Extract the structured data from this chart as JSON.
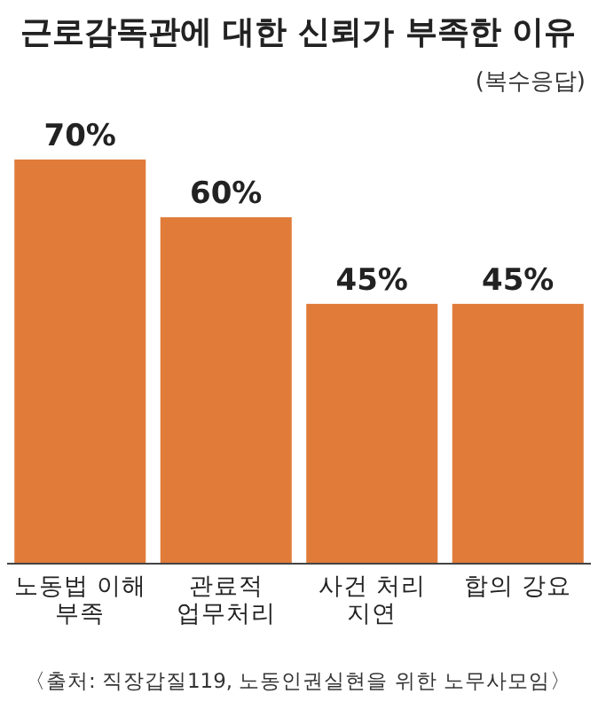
{
  "chart_data": {
    "type": "bar",
    "title": "근로감독관에 대한 신뢰가 부족한 이유",
    "subtitle": "(복수응답)",
    "categories": [
      "노동법 이해\n부족",
      "관료적\n업무처리",
      "사건 처리\n지연",
      "합의 강요"
    ],
    "values": [
      70,
      60,
      45,
      45
    ],
    "value_labels": [
      "70%",
      "60%",
      "45%",
      "45%"
    ],
    "color": "#e07b39",
    "annotations": [
      "〈출처: 직장갑질119, 노동인권실현을 위한 노무사모임〉"
    ]
  }
}
